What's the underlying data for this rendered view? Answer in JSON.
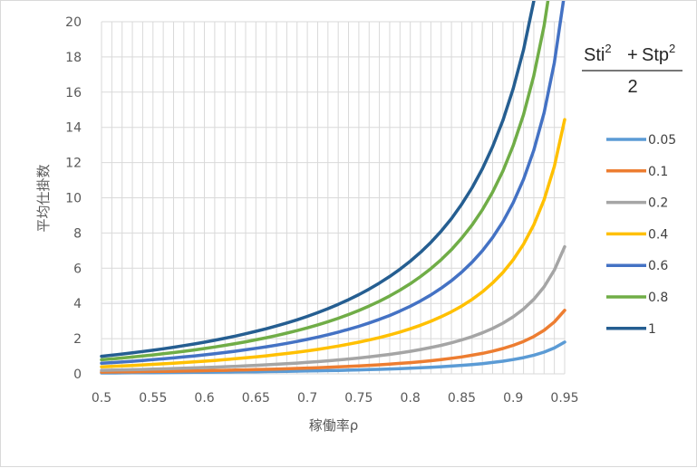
{
  "chart_data": {
    "type": "line",
    "xlabel": "稼働率ρ",
    "ylabel": "平均仕掛数",
    "xlim": [
      0.5,
      0.95
    ],
    "ylim": [
      0,
      20
    ],
    "x_ticks": [
      "0.5",
      "0.55",
      "0.6",
      "0.65",
      "0.7",
      "0.75",
      "0.8",
      "0.85",
      "0.9",
      "0.95"
    ],
    "y_ticks": [
      "0",
      "2",
      "4",
      "6",
      "8",
      "10",
      "12",
      "14",
      "16",
      "18",
      "20"
    ],
    "x_minor_step": 0.01,
    "grid": true,
    "legend_placement": "right",
    "legend_title": {
      "numerator_a": "Sti",
      "numerator_a_exp": "2",
      "plus": "+",
      "numerator_b": "Stp",
      "numerator_b_exp": "2",
      "denominator": "2"
    },
    "series": [
      {
        "name": "0.05",
        "coef": 0.05,
        "color": "#5B9BD5"
      },
      {
        "name": "0.1",
        "coef": 0.1,
        "color": "#ED7D31"
      },
      {
        "name": "0.2",
        "coef": 0.2,
        "color": "#A5A5A5"
      },
      {
        "name": "0.4",
        "coef": 0.4,
        "color": "#FFC000"
      },
      {
        "name": "0.6",
        "coef": 0.6,
        "color": "#4472C4"
      },
      {
        "name": "0.8",
        "coef": 0.8,
        "color": "#70AD47"
      },
      {
        "name": "1",
        "coef": 1.0,
        "color": "#255E91"
      }
    ]
  }
}
